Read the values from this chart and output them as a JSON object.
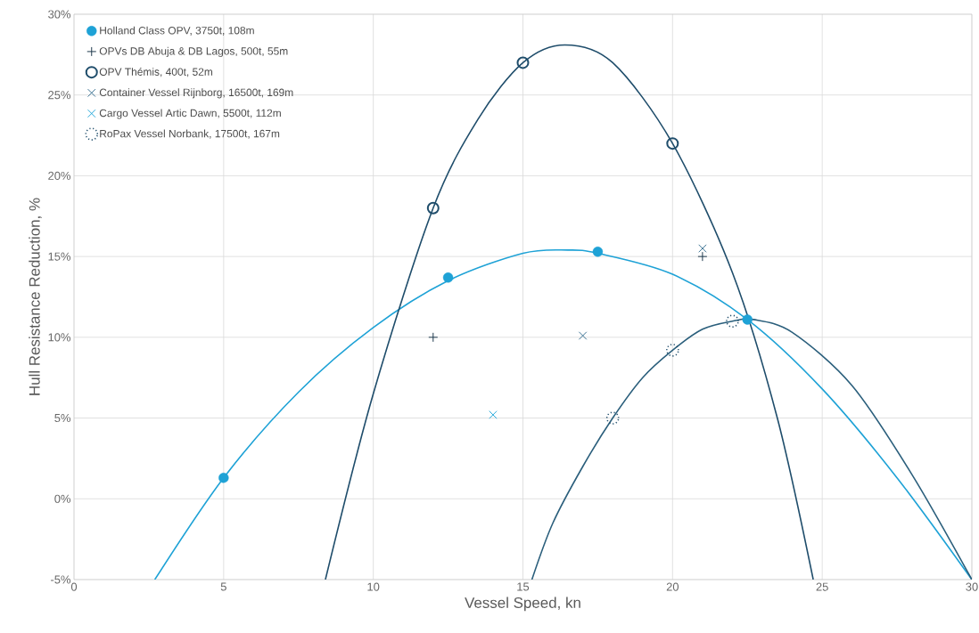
{
  "chart_data": {
    "type": "scatter",
    "xlabel": "Vessel Speed, kn",
    "ylabel": "Hull Resistance Reduction, %",
    "xlim": [
      0,
      30
    ],
    "xticks": [
      0,
      5,
      10,
      15,
      20,
      25,
      30
    ],
    "ylim": [
      -5,
      30
    ],
    "yticks": [
      {
        "value": -5,
        "label": "-5%"
      },
      {
        "value": 0,
        "label": "0%"
      },
      {
        "value": 5,
        "label": "5%"
      },
      {
        "value": 10,
        "label": "10%"
      },
      {
        "value": 15,
        "label": "15%"
      },
      {
        "value": 20,
        "label": "20%"
      },
      {
        "value": 25,
        "label": "25%"
      },
      {
        "value": 30,
        "label": "30%"
      }
    ],
    "grid": true,
    "legend": "top left",
    "series": [
      {
        "type": "line",
        "color": "#1ea2d6",
        "marker": "none",
        "x": [
          2.7,
          5,
          7.5,
          10,
          12.5,
          15,
          16.5,
          17.5,
          20,
          22.5,
          25,
          27.5,
          30
        ],
        "values": [
          -5,
          1.3,
          6.6,
          10.6,
          13.5,
          15.2,
          15.4,
          15.2,
          13.9,
          11.1,
          6.8,
          1.3,
          -5
        ]
      },
      {
        "type": "line",
        "color": "#1f4d6b",
        "marker": "none",
        "x": [
          8.4,
          10,
          12,
          13.5,
          15,
          16.4,
          18,
          20,
          22,
          23.5,
          24.7
        ],
        "values": [
          -5,
          6.5,
          18,
          23.5,
          27,
          28.1,
          27,
          22,
          14,
          5,
          -5
        ]
      },
      {
        "type": "line",
        "color": "#2b5f7c",
        "marker": "none",
        "x": [
          15.3,
          16,
          17,
          18,
          19,
          20,
          21,
          22,
          22.7,
          24,
          26,
          28,
          30
        ],
        "values": [
          -5,
          -1.5,
          2,
          5,
          7.5,
          9.2,
          10.5,
          11,
          11.1,
          10.3,
          7,
          1.5,
          -5
        ]
      },
      {
        "name": "Holland Class OPV, 3750t, 108m",
        "color": "#1ea2d6",
        "marker": "circle",
        "x": [
          5,
          12.5,
          17.5,
          22.5
        ],
        "values": [
          1.3,
          13.7,
          15.3,
          11.1
        ]
      },
      {
        "name": "OPVs DB Abuja & DB Lagos, 500t, 55m",
        "color": "#1f3a4d",
        "marker": "plus",
        "x": [
          12,
          21
        ],
        "values": [
          10,
          15
        ]
      },
      {
        "name": "OPV Thémis, 400t, 52m",
        "color": "#1f4d6b",
        "marker": "circle_open",
        "x": [
          12,
          15,
          20
        ],
        "values": [
          18,
          27,
          22
        ]
      },
      {
        "name": "Container Vessel Rijnborg, 16500t, 169m",
        "color": "#3d7394",
        "marker": "cross",
        "x": [
          17,
          21
        ],
        "values": [
          10.1,
          15.5
        ]
      },
      {
        "name": "Cargo Vessel Artic Dawn, 5500t, 112m",
        "color": "#2aaadb",
        "marker": "cross",
        "x": [
          14
        ],
        "values": [
          5.2
        ]
      },
      {
        "name": "RoPax Vessel Norbank, 17500t, 167m",
        "color": "#1f4d6b",
        "marker": "circle_dotted",
        "x": [
          18,
          20,
          22
        ],
        "values": [
          5,
          9.2,
          11
        ]
      }
    ]
  }
}
